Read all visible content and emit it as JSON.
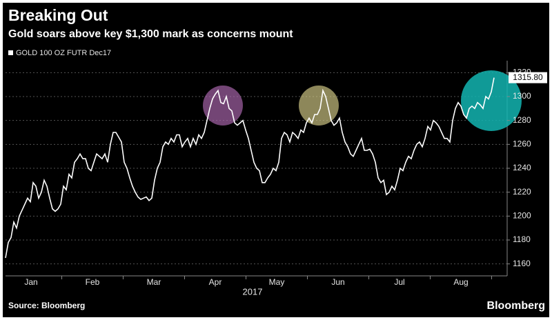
{
  "chart_data": {
    "type": "line",
    "title": "Breaking Out",
    "subtitle": "Gold soars above key $1,300 mark as concerns mount",
    "series": [
      {
        "name": "GOLD 100 OZ FUTR Dec17",
        "color": "#ffffff",
        "values": [
          1165,
          1178,
          1182,
          1195,
          1190,
          1200,
          1205,
          1210,
          1215,
          1212,
          1228,
          1225,
          1215,
          1220,
          1230,
          1225,
          1215,
          1206,
          1204,
          1206,
          1210,
          1225,
          1222,
          1235,
          1232,
          1245,
          1248,
          1252,
          1248,
          1248,
          1240,
          1238,
          1245,
          1252,
          1250,
          1248,
          1252,
          1245,
          1260,
          1270,
          1270,
          1266,
          1262,
          1245,
          1240,
          1232,
          1225,
          1220,
          1216,
          1214,
          1215,
          1216,
          1213,
          1215,
          1230,
          1240,
          1245,
          1258,
          1262,
          1260,
          1265,
          1262,
          1268,
          1268,
          1258,
          1262,
          1265,
          1258,
          1265,
          1260,
          1268,
          1265,
          1270,
          1280,
          1290,
          1298,
          1302,
          1305,
          1295,
          1294,
          1300,
          1290,
          1288,
          1278,
          1276,
          1278,
          1280,
          1272,
          1265,
          1255,
          1245,
          1240,
          1238,
          1228,
          1228,
          1232,
          1235,
          1240,
          1238,
          1245,
          1265,
          1270,
          1268,
          1262,
          1270,
          1268,
          1265,
          1272,
          1270,
          1278,
          1282,
          1278,
          1285,
          1285,
          1290,
          1305,
          1300,
          1290,
          1280,
          1276,
          1278,
          1282,
          1270,
          1262,
          1258,
          1252,
          1250,
          1255,
          1260,
          1265,
          1255,
          1255,
          1256,
          1252,
          1245,
          1232,
          1228,
          1230,
          1218,
          1220,
          1225,
          1222,
          1230,
          1240,
          1238,
          1245,
          1250,
          1248,
          1255,
          1260,
          1262,
          1258,
          1265,
          1275,
          1272,
          1280,
          1278,
          1275,
          1270,
          1265,
          1265,
          1262,
          1280,
          1290,
          1295,
          1292,
          1285,
          1282,
          1290,
          1292,
          1290,
          1295,
          1293,
          1290,
          1300,
          1298,
          1304,
          1315.8
        ],
        "last_label": "1315.80"
      }
    ],
    "months": [
      "Jan",
      "Feb",
      "Mar",
      "Apr",
      "May",
      "Jun",
      "Jul",
      "Aug"
    ],
    "year": "2017",
    "ylim": [
      1150,
      1330
    ],
    "yticks": [
      1160,
      1180,
      1200,
      1220,
      1240,
      1260,
      1280,
      1300,
      1320
    ],
    "grid": true,
    "source": "Source: Bloomberg",
    "brand": "Bloomberg"
  }
}
